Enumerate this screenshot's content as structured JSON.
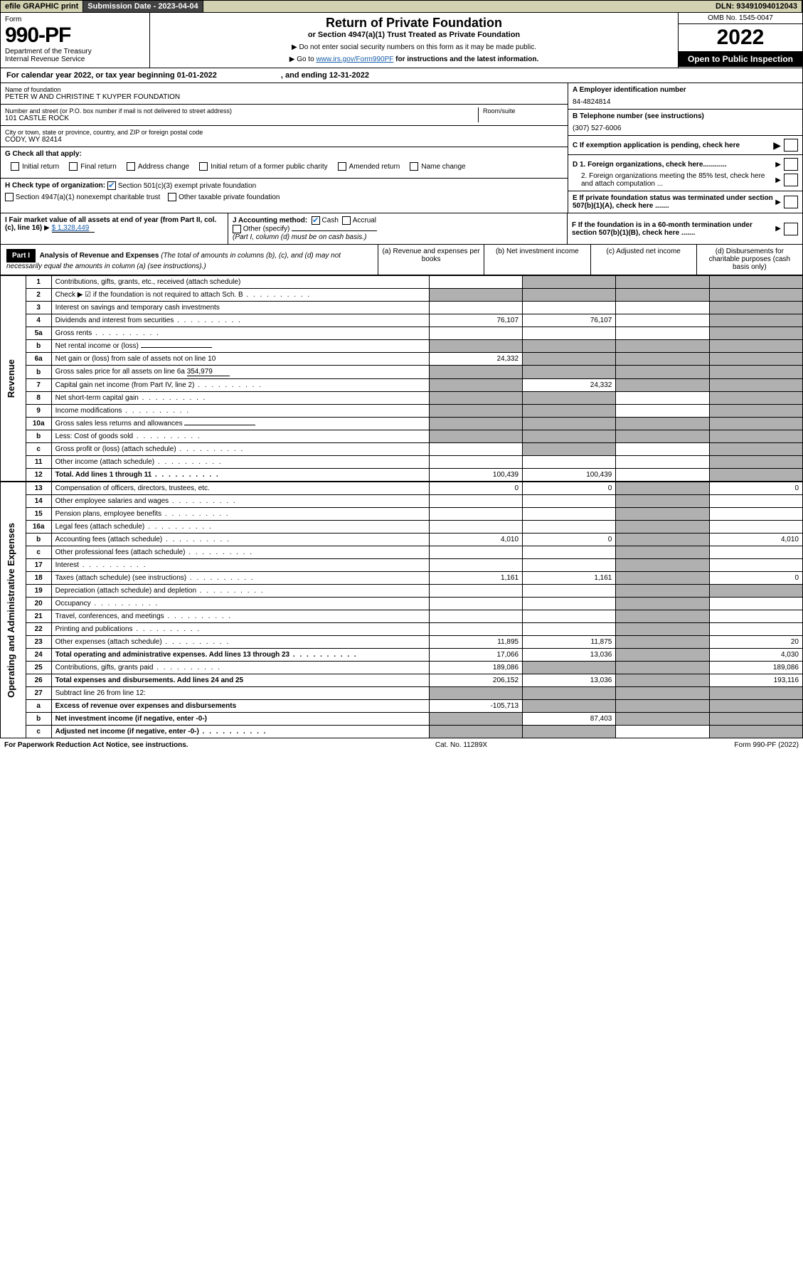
{
  "top": {
    "efile": "efile GRAPHIC print",
    "sub_label": "Submission Date - 2023-04-04",
    "dln": "DLN: 93491094012043"
  },
  "header": {
    "form_word": "Form",
    "form_num": "990-PF",
    "dept": "Department of the Treasury",
    "irs": "Internal Revenue Service",
    "title": "Return of Private Foundation",
    "subtitle": "or Section 4947(a)(1) Trust Treated as Private Foundation",
    "note1": "▶ Do not enter social security numbers on this form as it may be made public.",
    "note2_pre": "▶ Go to ",
    "note2_link": "www.irs.gov/Form990PF",
    "note2_post": " for instructions and the latest information.",
    "omb": "OMB No. 1545-0047",
    "year": "2022",
    "open": "Open to Public Inspection"
  },
  "cal": {
    "pre": "For calendar year 2022, or tax year beginning 01-01-2022",
    "end": ", and ending 12-31-2022"
  },
  "org": {
    "name_label": "Name of foundation",
    "name": "PETER W AND CHRISTINE T KUYPER FOUNDATION",
    "addr_label": "Number and street (or P.O. box number if mail is not delivered to street address)",
    "addr": "101 CASTLE ROCK",
    "room_label": "Room/suite",
    "city_label": "City or town, state or province, country, and ZIP or foreign postal code",
    "city": "CODY, WY  82414",
    "a_label": "A Employer identification number",
    "ein": "84-4824814",
    "b_label": "B Telephone number (see instructions)",
    "phone": "(307) 527-6006",
    "c_label": "C If exemption application is pending, check here",
    "d1": "D 1. Foreign organizations, check here............",
    "d2": "2. Foreign organizations meeting the 85% test, check here and attach computation ...",
    "e": "E  If private foundation status was terminated under section 507(b)(1)(A), check here .......",
    "f": "F  If the foundation is in a 60-month termination under section 507(b)(1)(B), check here ......."
  },
  "g": {
    "label": "G Check all that apply:",
    "opts": [
      "Initial return",
      "Final return",
      "Address change",
      "Initial return of a former public charity",
      "Amended return",
      "Name change"
    ]
  },
  "h": {
    "label": "H Check type of organization:",
    "o1": "Section 501(c)(3) exempt private foundation",
    "o2": "Section 4947(a)(1) nonexempt charitable trust",
    "o3": "Other taxable private foundation"
  },
  "i": {
    "label": "I Fair market value of all assets at end of year (from Part II, col. (c), line 16)",
    "val": "$  1,328,449"
  },
  "j": {
    "label": "J Accounting method:",
    "o1": "Cash",
    "o2": "Accrual",
    "o3": "Other (specify)",
    "note": "(Part I, column (d) must be on cash basis.)"
  },
  "part1": {
    "label": "Part I",
    "title": "Analysis of Revenue and Expenses",
    "title_note": " (The total of amounts in columns (b), (c), and (d) may not necessarily equal the amounts in column (a) (see instructions).)",
    "colA": "(a)  Revenue and expenses per books",
    "colB": "(b)  Net investment income",
    "colC": "(c)  Adjusted net income",
    "colD": "(d)  Disbursements for charitable purposes (cash basis only)"
  },
  "sections": {
    "rev": "Revenue",
    "exp": "Operating and Administrative Expenses"
  },
  "gross_sales_price": "354,979",
  "rows": [
    {
      "n": "1",
      "d": "Contributions, gifts, grants, etc., received (attach schedule)",
      "a": "",
      "b": "shade",
      "c": "shade",
      "dcol": "shade"
    },
    {
      "n": "2",
      "d": "Check ▶ ☑ if the foundation is not required to attach Sch. B",
      "dots": true,
      "a": "shade",
      "b": "shade",
      "c": "shade",
      "dcol": "shade",
      "checked": true,
      "not_bold": true
    },
    {
      "n": "3",
      "d": "Interest on savings and temporary cash investments",
      "a": "",
      "b": "",
      "c": "",
      "dcol": "shade"
    },
    {
      "n": "4",
      "d": "Dividends and interest from securities",
      "dots": true,
      "a": "76,107",
      "b": "76,107",
      "c": "",
      "dcol": "shade"
    },
    {
      "n": "5a",
      "d": "Gross rents",
      "dots": true,
      "a": "",
      "b": "",
      "c": "",
      "dcol": "shade"
    },
    {
      "n": "b",
      "d": "Net rental income or (loss)",
      "field": true,
      "a": "shade",
      "b": "shade",
      "c": "shade",
      "dcol": "shade"
    },
    {
      "n": "6a",
      "d": "Net gain or (loss) from sale of assets not on line 10",
      "a": "24,332",
      "b": "shade",
      "c": "shade",
      "dcol": "shade"
    },
    {
      "n": "b",
      "d": "Gross sales price for all assets on line 6a",
      "field_val": "354,979",
      "a": "shade",
      "b": "shade",
      "c": "shade",
      "dcol": "shade"
    },
    {
      "n": "7",
      "d": "Capital gain net income (from Part IV, line 2)",
      "dots": true,
      "a": "shade",
      "b": "24,332",
      "c": "shade",
      "dcol": "shade"
    },
    {
      "n": "8",
      "d": "Net short-term capital gain",
      "dots": true,
      "a": "shade",
      "b": "shade",
      "c": "",
      "dcol": "shade"
    },
    {
      "n": "9",
      "d": "Income modifications",
      "dots": true,
      "a": "shade",
      "b": "shade",
      "c": "",
      "dcol": "shade"
    },
    {
      "n": "10a",
      "d": "Gross sales less returns and allowances",
      "field": true,
      "a": "shade",
      "b": "shade",
      "c": "shade",
      "dcol": "shade"
    },
    {
      "n": "b",
      "d": "Less: Cost of goods sold",
      "dots": true,
      "field": true,
      "a": "shade",
      "b": "shade",
      "c": "shade",
      "dcol": "shade"
    },
    {
      "n": "c",
      "d": "Gross profit or (loss) (attach schedule)",
      "dots": true,
      "a": "",
      "b": "shade",
      "c": "",
      "dcol": "shade"
    },
    {
      "n": "11",
      "d": "Other income (attach schedule)",
      "dots": true,
      "a": "",
      "b": "",
      "c": "",
      "dcol": "shade"
    },
    {
      "n": "12",
      "d": "Total. Add lines 1 through 11",
      "bold": true,
      "dots": true,
      "a": "100,439",
      "b": "100,439",
      "c": "",
      "dcol": "shade"
    }
  ],
  "exp_rows": [
    {
      "n": "13",
      "d": "Compensation of officers, directors, trustees, etc.",
      "a": "0",
      "b": "0",
      "c": "shade",
      "dcol": "0"
    },
    {
      "n": "14",
      "d": "Other employee salaries and wages",
      "dots": true,
      "a": "",
      "b": "",
      "c": "shade",
      "dcol": ""
    },
    {
      "n": "15",
      "d": "Pension plans, employee benefits",
      "dots": true,
      "a": "",
      "b": "",
      "c": "shade",
      "dcol": ""
    },
    {
      "n": "16a",
      "d": "Legal fees (attach schedule)",
      "dots": true,
      "a": "",
      "b": "",
      "c": "shade",
      "dcol": ""
    },
    {
      "n": "b",
      "d": "Accounting fees (attach schedule)",
      "dots": true,
      "a": "4,010",
      "b": "0",
      "c": "shade",
      "dcol": "4,010"
    },
    {
      "n": "c",
      "d": "Other professional fees (attach schedule)",
      "dots": true,
      "a": "",
      "b": "",
      "c": "shade",
      "dcol": ""
    },
    {
      "n": "17",
      "d": "Interest",
      "dots": true,
      "a": "",
      "b": "",
      "c": "shade",
      "dcol": ""
    },
    {
      "n": "18",
      "d": "Taxes (attach schedule) (see instructions)",
      "dots": true,
      "a": "1,161",
      "b": "1,161",
      "c": "shade",
      "dcol": "0"
    },
    {
      "n": "19",
      "d": "Depreciation (attach schedule) and depletion",
      "dots": true,
      "a": "",
      "b": "",
      "c": "shade",
      "dcol": "shade"
    },
    {
      "n": "20",
      "d": "Occupancy",
      "dots": true,
      "a": "",
      "b": "",
      "c": "shade",
      "dcol": ""
    },
    {
      "n": "21",
      "d": "Travel, conferences, and meetings",
      "dots": true,
      "a": "",
      "b": "",
      "c": "shade",
      "dcol": ""
    },
    {
      "n": "22",
      "d": "Printing and publications",
      "dots": true,
      "a": "",
      "b": "",
      "c": "shade",
      "dcol": ""
    },
    {
      "n": "23",
      "d": "Other expenses (attach schedule)",
      "dots": true,
      "a": "11,895",
      "b": "11,875",
      "c": "shade",
      "dcol": "20"
    },
    {
      "n": "24",
      "d": "Total operating and administrative expenses. Add lines 13 through 23",
      "bold": true,
      "dots": true,
      "a": "17,066",
      "b": "13,036",
      "c": "shade",
      "dcol": "4,030",
      "twoLine": true
    },
    {
      "n": "25",
      "d": "Contributions, gifts, grants paid",
      "dots": true,
      "a": "189,086",
      "b": "shade",
      "c": "shade",
      "dcol": "189,086"
    },
    {
      "n": "26",
      "d": "Total expenses and disbursements. Add lines 24 and 25",
      "bold": true,
      "a": "206,152",
      "b": "13,036",
      "c": "shade",
      "dcol": "193,116",
      "twoLine": true
    },
    {
      "n": "27",
      "d": "Subtract line 26 from line 12:",
      "a": "shade",
      "b": "shade",
      "c": "shade",
      "dcol": "shade"
    },
    {
      "n": "a",
      "d": "Excess of revenue over expenses and disbursements",
      "bold": true,
      "a": "-105,713",
      "b": "shade",
      "c": "shade",
      "dcol": "shade"
    },
    {
      "n": "b",
      "d": "Net investment income (if negative, enter -0-)",
      "bold": true,
      "a": "shade",
      "b": "87,403",
      "c": "shade",
      "dcol": "shade"
    },
    {
      "n": "c",
      "d": "Adjusted net income (if negative, enter -0-)",
      "bold": true,
      "dots": true,
      "a": "shade",
      "b": "shade",
      "c": "",
      "dcol": "shade"
    }
  ],
  "footer": {
    "left": "For Paperwork Reduction Act Notice, see instructions.",
    "mid": "Cat. No. 11289X",
    "right": "Form 990-PF (2022)"
  }
}
